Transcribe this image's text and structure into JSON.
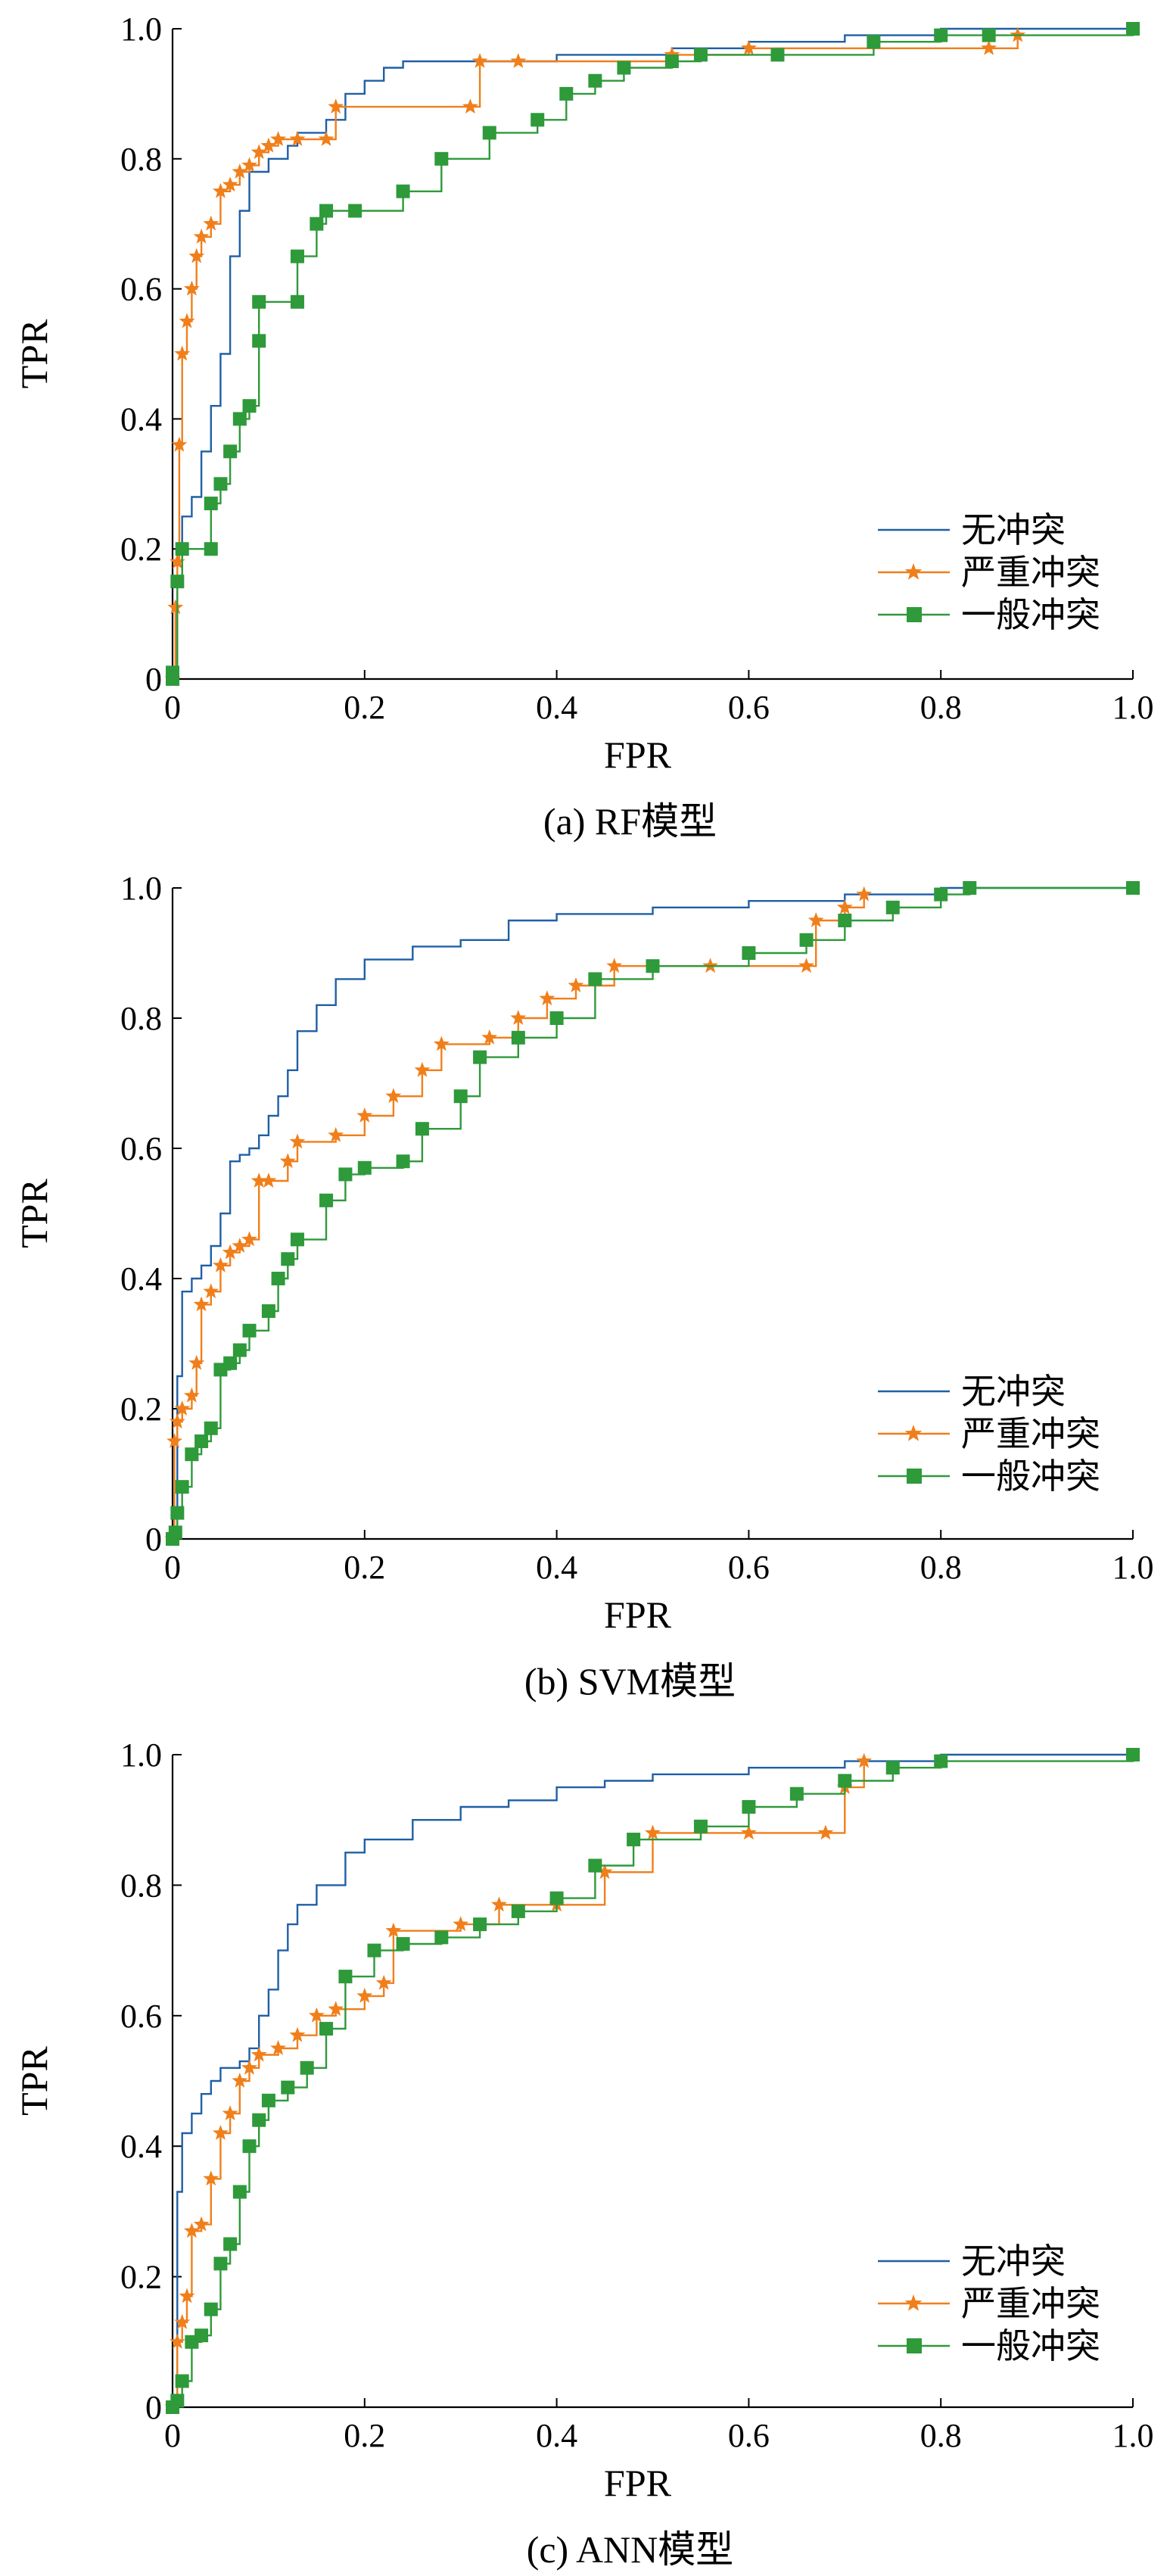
{
  "chart_data": [
    {
      "type": "line",
      "caption": "(a) RF模型",
      "xlabel": "FPR",
      "ylabel": "TPR",
      "xlim": [
        0,
        1
      ],
      "ylim": [
        0,
        1
      ],
      "xticks": [
        "0",
        "0.2",
        "0.4",
        "0.6",
        "0.8",
        "1.0"
      ],
      "yticks": [
        "0",
        "0.2",
        "0.4",
        "0.6",
        "0.8",
        "1.0"
      ],
      "legend_position": "bottom-right",
      "grid": false,
      "series": [
        {
          "name": "无冲突",
          "color": "#1f5fa6",
          "marker": "none",
          "x": [
            0,
            0.005,
            0.005,
            0.01,
            0.01,
            0.02,
            0.02,
            0.03,
            0.03,
            0.04,
            0.04,
            0.05,
            0.05,
            0.06,
            0.06,
            0.07,
            0.08,
            0.1,
            0.12,
            0.13,
            0.16,
            0.18,
            0.2,
            0.22,
            0.24,
            0.3,
            0.34,
            0.4,
            0.52,
            0.6,
            0.7,
            0.8,
            1.0
          ],
          "y": [
            0,
            0,
            0.15,
            0.15,
            0.25,
            0.25,
            0.28,
            0.28,
            0.35,
            0.35,
            0.42,
            0.42,
            0.5,
            0.5,
            0.65,
            0.72,
            0.78,
            0.8,
            0.82,
            0.84,
            0.86,
            0.9,
            0.92,
            0.94,
            0.95,
            0.95,
            0.95,
            0.96,
            0.97,
            0.98,
            0.99,
            1.0,
            1.0
          ]
        },
        {
          "name": "严重冲突",
          "color": "#f07f1b",
          "marker": "star",
          "x": [
            0,
            0.003,
            0.005,
            0.007,
            0.01,
            0.015,
            0.02,
            0.025,
            0.03,
            0.04,
            0.05,
            0.06,
            0.07,
            0.08,
            0.09,
            0.1,
            0.11,
            0.13,
            0.16,
            0.17,
            0.31,
            0.32,
            0.36,
            0.52,
            0.6,
            0.85,
            0.88
          ],
          "y": [
            0,
            0.11,
            0.18,
            0.36,
            0.5,
            0.55,
            0.6,
            0.65,
            0.68,
            0.7,
            0.75,
            0.76,
            0.78,
            0.79,
            0.81,
            0.82,
            0.83,
            0.83,
            0.83,
            0.88,
            0.88,
            0.95,
            0.95,
            0.96,
            0.97,
            0.97,
            0.99
          ]
        },
        {
          "name": "一般冲突",
          "color": "#2e9a3a",
          "marker": "square",
          "x": [
            0,
            0,
            0.005,
            0.01,
            0.04,
            0.04,
            0.05,
            0.06,
            0.07,
            0.08,
            0.09,
            0.09,
            0.13,
            0.13,
            0.15,
            0.16,
            0.19,
            0.24,
            0.28,
            0.33,
            0.38,
            0.41,
            0.44,
            0.47,
            0.52,
            0.55,
            0.63,
            0.73,
            0.8,
            0.85,
            1.0
          ],
          "y": [
            0,
            0.01,
            0.15,
            0.2,
            0.2,
            0.27,
            0.3,
            0.35,
            0.4,
            0.42,
            0.52,
            0.58,
            0.58,
            0.65,
            0.7,
            0.72,
            0.72,
            0.75,
            0.8,
            0.84,
            0.86,
            0.9,
            0.92,
            0.94,
            0.95,
            0.96,
            0.96,
            0.98,
            0.99,
            0.99,
            1.0
          ]
        }
      ]
    },
    {
      "type": "line",
      "caption": "(b) SVM模型",
      "xlabel": "FPR",
      "ylabel": "TPR",
      "xlim": [
        0,
        1
      ],
      "ylim": [
        0,
        1
      ],
      "xticks": [
        "0",
        "0.2",
        "0.4",
        "0.6",
        "0.8",
        "1.0"
      ],
      "yticks": [
        "0",
        "0.2",
        "0.4",
        "0.6",
        "0.8",
        "1.0"
      ],
      "legend_position": "bottom-right",
      "grid": false,
      "series": [
        {
          "name": "无冲突",
          "color": "#1f5fa6",
          "marker": "none",
          "x": [
            0,
            0.005,
            0.005,
            0.01,
            0.02,
            0.03,
            0.04,
            0.05,
            0.06,
            0.07,
            0.08,
            0.09,
            0.1,
            0.11,
            0.12,
            0.13,
            0.15,
            0.17,
            0.2,
            0.25,
            0.3,
            0.35,
            0.4,
            0.5,
            0.6,
            0.7,
            0.8,
            1.0
          ],
          "y": [
            0,
            0,
            0.25,
            0.38,
            0.4,
            0.42,
            0.45,
            0.5,
            0.58,
            0.59,
            0.6,
            0.62,
            0.65,
            0.68,
            0.72,
            0.78,
            0.82,
            0.86,
            0.89,
            0.91,
            0.92,
            0.95,
            0.96,
            0.97,
            0.98,
            0.99,
            1.0,
            1.0
          ]
        },
        {
          "name": "严重冲突",
          "color": "#f07f1b",
          "marker": "star",
          "x": [
            0,
            0.002,
            0.005,
            0.01,
            0.02,
            0.025,
            0.03,
            0.04,
            0.05,
            0.06,
            0.07,
            0.08,
            0.09,
            0.1,
            0.12,
            0.13,
            0.17,
            0.2,
            0.23,
            0.26,
            0.28,
            0.33,
            0.36,
            0.39,
            0.42,
            0.46,
            0.56,
            0.66,
            0.67,
            0.7,
            0.72
          ],
          "y": [
            0,
            0.15,
            0.18,
            0.2,
            0.22,
            0.27,
            0.36,
            0.38,
            0.42,
            0.44,
            0.45,
            0.46,
            0.55,
            0.55,
            0.58,
            0.61,
            0.62,
            0.65,
            0.68,
            0.72,
            0.76,
            0.77,
            0.8,
            0.83,
            0.85,
            0.88,
            0.88,
            0.88,
            0.95,
            0.97,
            0.99
          ]
        },
        {
          "name": "一般冲突",
          "color": "#2e9a3a",
          "marker": "square",
          "x": [
            0,
            0.003,
            0.005,
            0.01,
            0.02,
            0.03,
            0.04,
            0.05,
            0.06,
            0.07,
            0.08,
            0.1,
            0.11,
            0.12,
            0.13,
            0.16,
            0.18,
            0.2,
            0.24,
            0.26,
            0.3,
            0.32,
            0.36,
            0.4,
            0.44,
            0.5,
            0.6,
            0.66,
            0.7,
            0.75,
            0.8,
            0.83,
            1.0
          ],
          "y": [
            0,
            0.01,
            0.04,
            0.08,
            0.13,
            0.15,
            0.17,
            0.26,
            0.27,
            0.29,
            0.32,
            0.35,
            0.4,
            0.43,
            0.46,
            0.52,
            0.56,
            0.57,
            0.58,
            0.63,
            0.68,
            0.74,
            0.77,
            0.8,
            0.86,
            0.88,
            0.9,
            0.92,
            0.95,
            0.97,
            0.99,
            1.0,
            1.0
          ]
        }
      ]
    },
    {
      "type": "line",
      "caption": "(c) ANN模型",
      "xlabel": "FPR",
      "ylabel": "TPR",
      "xlim": [
        0,
        1
      ],
      "ylim": [
        0,
        1
      ],
      "xticks": [
        "0",
        "0.2",
        "0.4",
        "0.6",
        "0.8",
        "1.0"
      ],
      "yticks": [
        "0",
        "0.2",
        "0.4",
        "0.6",
        "0.8",
        "1.0"
      ],
      "legend_position": "bottom-right",
      "grid": false,
      "series": [
        {
          "name": "无冲突",
          "color": "#1f5fa6",
          "marker": "none",
          "x": [
            0,
            0.005,
            0.005,
            0.01,
            0.02,
            0.03,
            0.04,
            0.05,
            0.07,
            0.08,
            0.09,
            0.1,
            0.11,
            0.12,
            0.13,
            0.15,
            0.18,
            0.2,
            0.25,
            0.3,
            0.35,
            0.4,
            0.45,
            0.5,
            0.6,
            0.7,
            0.8,
            1.0
          ],
          "y": [
            0,
            0,
            0.33,
            0.42,
            0.45,
            0.48,
            0.5,
            0.52,
            0.53,
            0.55,
            0.6,
            0.64,
            0.7,
            0.74,
            0.77,
            0.8,
            0.85,
            0.87,
            0.9,
            0.92,
            0.93,
            0.95,
            0.96,
            0.97,
            0.98,
            0.99,
            1.0,
            1.0
          ]
        },
        {
          "name": "严重冲突",
          "color": "#f07f1b",
          "marker": "star",
          "x": [
            0,
            0.005,
            0.01,
            0.015,
            0.02,
            0.03,
            0.04,
            0.05,
            0.06,
            0.07,
            0.08,
            0.09,
            0.11,
            0.13,
            0.15,
            0.17,
            0.2,
            0.22,
            0.23,
            0.3,
            0.34,
            0.4,
            0.45,
            0.5,
            0.6,
            0.68,
            0.7,
            0.72
          ],
          "y": [
            0,
            0.1,
            0.13,
            0.17,
            0.27,
            0.28,
            0.35,
            0.42,
            0.45,
            0.5,
            0.52,
            0.54,
            0.55,
            0.57,
            0.6,
            0.61,
            0.63,
            0.65,
            0.73,
            0.74,
            0.77,
            0.77,
            0.82,
            0.88,
            0.88,
            0.88,
            0.95,
            0.99
          ]
        },
        {
          "name": "一般冲突",
          "color": "#2e9a3a",
          "marker": "square",
          "x": [
            0,
            0.005,
            0.01,
            0.02,
            0.03,
            0.04,
            0.05,
            0.06,
            0.07,
            0.08,
            0.09,
            0.1,
            0.12,
            0.14,
            0.16,
            0.18,
            0.21,
            0.24,
            0.28,
            0.32,
            0.36,
            0.4,
            0.44,
            0.48,
            0.55,
            0.6,
            0.65,
            0.7,
            0.75,
            0.8,
            1.0
          ],
          "y": [
            0,
            0.01,
            0.04,
            0.1,
            0.11,
            0.15,
            0.22,
            0.25,
            0.33,
            0.4,
            0.44,
            0.47,
            0.49,
            0.52,
            0.58,
            0.66,
            0.7,
            0.71,
            0.72,
            0.74,
            0.76,
            0.78,
            0.83,
            0.87,
            0.89,
            0.92,
            0.94,
            0.96,
            0.98,
            0.99,
            1.0
          ]
        }
      ]
    }
  ]
}
